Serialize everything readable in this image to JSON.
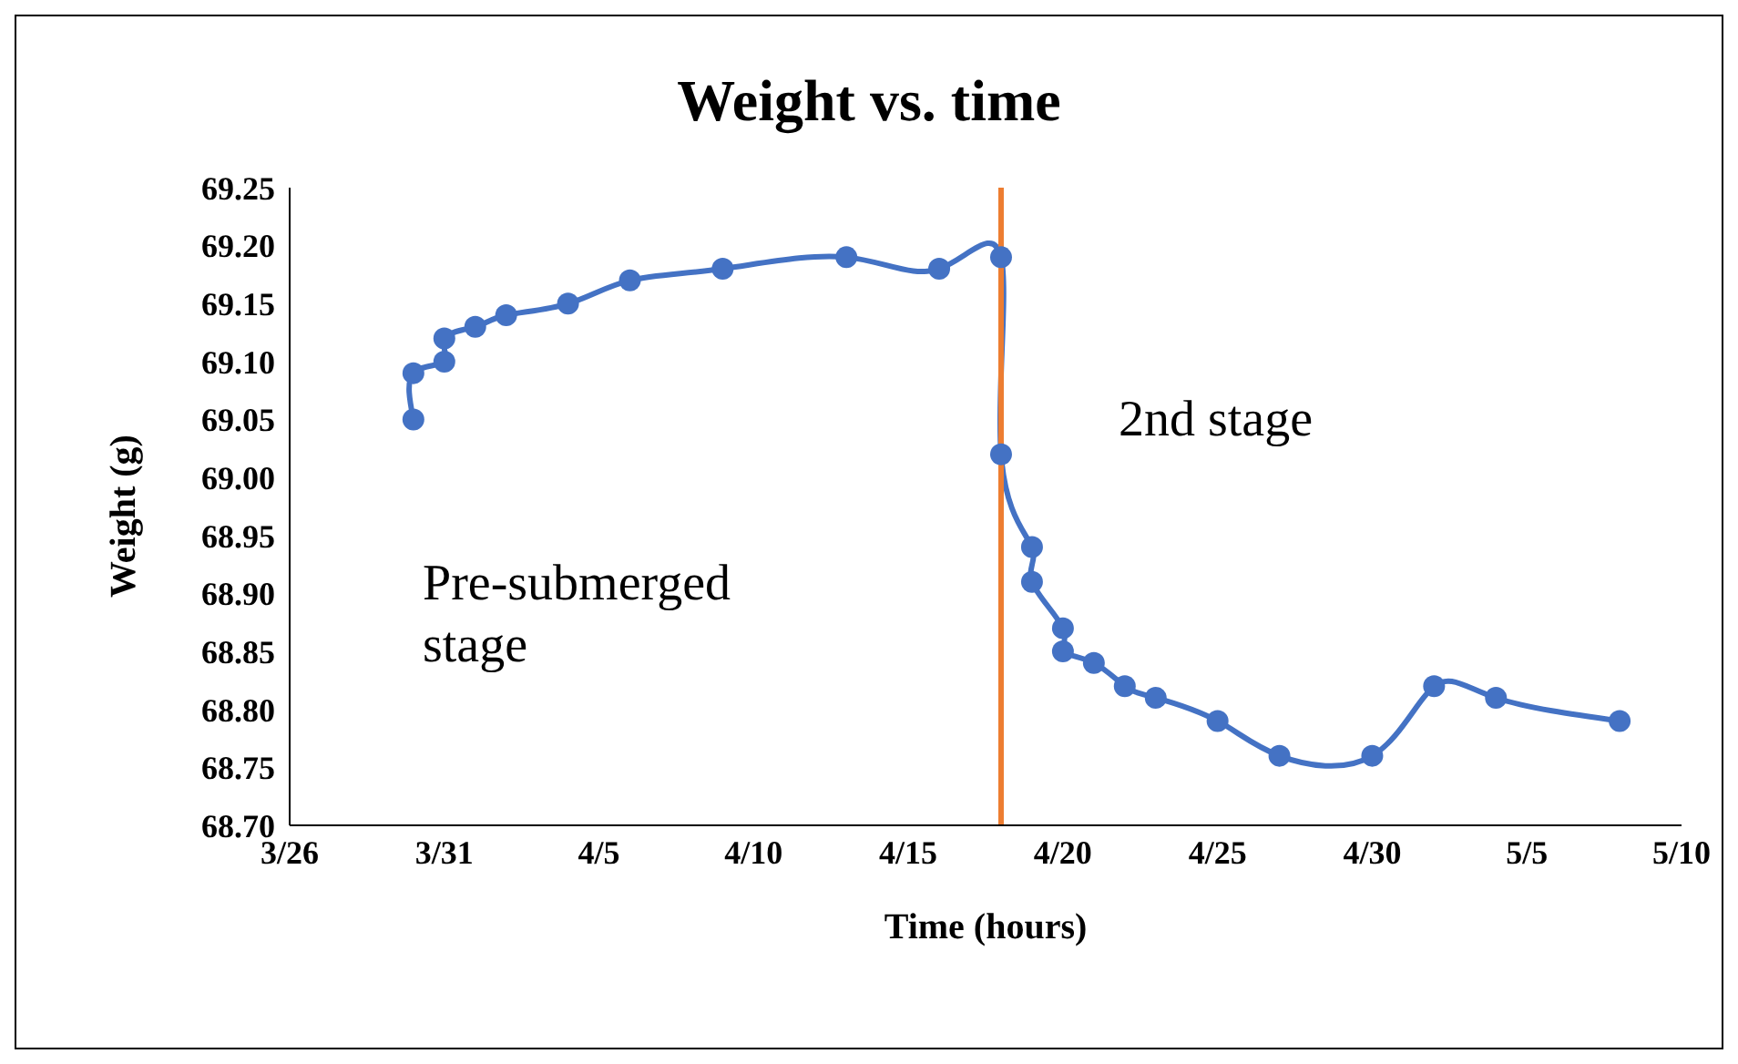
{
  "chart_data": {
    "type": "line",
    "title": "Weight vs. time",
    "xlabel": "Time (hours)",
    "ylabel": "Weight (g)",
    "x": [
      "--03-30",
      "--03-30",
      "--03-31",
      "--03-31",
      "--04-01",
      "--04-02",
      "--04-04",
      "--04-06",
      "--04-09",
      "--04-13",
      "--04-16",
      "--04-18",
      "--04-18",
      "--04-19",
      "--04-19",
      "--04-20",
      "--04-20",
      "--04-21",
      "--04-22",
      "--04-23",
      "--04-25",
      "--04-27",
      "--04-30",
      "--05-02",
      "--05-04",
      "--05-08"
    ],
    "series": [
      {
        "color": "#4472c4",
        "values": [
          69.05,
          69.09,
          69.1,
          69.12,
          69.13,
          69.14,
          69.15,
          69.17,
          69.18,
          69.19,
          69.18,
          69.19,
          69.02,
          68.94,
          68.91,
          68.87,
          68.85,
          68.84,
          68.82,
          68.81,
          68.79,
          68.76,
          68.76,
          68.82,
          68.81,
          68.79
        ]
      }
    ],
    "xlim": [
      "--03-26",
      "--05-10"
    ],
    "xticks": [
      {
        "value": "--03-26",
        "label": "3/26"
      },
      {
        "value": "--03-31",
        "label": "3/31"
      },
      {
        "value": "--04-05",
        "label": "4/5"
      },
      {
        "value": "--04-10",
        "label": "4/10"
      },
      {
        "value": "--04-15",
        "label": "4/15"
      },
      {
        "value": "--04-20",
        "label": "4/20"
      },
      {
        "value": "--04-25",
        "label": "4/25"
      },
      {
        "value": "--04-30",
        "label": "4/30"
      },
      {
        "value": "--05-05",
        "label": "5/5"
      },
      {
        "value": "--05-10",
        "label": "5/10"
      }
    ],
    "ylim": [
      68.7,
      69.25
    ],
    "yticks": [
      {
        "value": 68.7,
        "label": "68.70"
      },
      {
        "value": 68.75,
        "label": "68.75"
      },
      {
        "value": 68.8,
        "label": "68.80"
      },
      {
        "value": 68.85,
        "label": "68.85"
      },
      {
        "value": 68.9,
        "label": "68.90"
      },
      {
        "value": 68.95,
        "label": "68.95"
      },
      {
        "value": 69.0,
        "label": "69.00"
      },
      {
        "value": 69.05,
        "label": "69.05"
      },
      {
        "value": 69.1,
        "label": "69.10"
      },
      {
        "value": 69.15,
        "label": "69.15"
      },
      {
        "value": 69.2,
        "label": "69.20"
      },
      {
        "value": 69.25,
        "label": "69.25"
      }
    ],
    "ref_lines": [
      {
        "axis": "x",
        "value": "--04-18",
        "color": "#ed7d31"
      }
    ],
    "annotations": [
      "Pre-submerged stage",
      "2nd stage"
    ],
    "marker": "circle"
  }
}
